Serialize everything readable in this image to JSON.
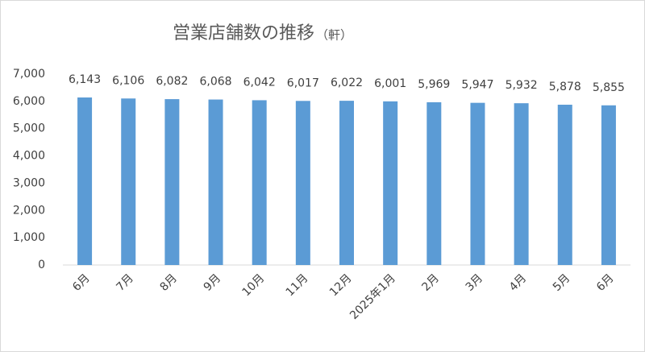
{
  "chart_data": {
    "type": "bar",
    "title": "営業店舗数の推移",
    "title_unit": "（軒）",
    "categories": [
      "6月",
      "7月",
      "8月",
      "9月",
      "10月",
      "11月",
      "12月",
      "2025年1月",
      "2月",
      "3月",
      "4月",
      "5月",
      "6月"
    ],
    "values": [
      6143,
      6106,
      6082,
      6068,
      6042,
      6017,
      6022,
      6001,
      5969,
      5947,
      5932,
      5878,
      5855
    ],
    "value_labels": [
      "6,143",
      "6,106",
      "6,082",
      "6,068",
      "6,042",
      "6,017",
      "6,022",
      "6,001",
      "5,969",
      "5,947",
      "5,932",
      "5,878",
      "5,855"
    ],
    "color": "#5b9bd5",
    "ylim": [
      0,
      7000
    ],
    "yticks": [
      0,
      {
        "value": 1000,
        "label": "1,000"
      },
      {
        "value": 2000,
        "label": "2,000"
      },
      {
        "value": 3000,
        "label": "3,000"
      },
      {
        "value": 4000,
        "label": "4,000"
      },
      {
        "value": 5000,
        "label": "5,000"
      },
      {
        "value": 6000,
        "label": "6,000"
      },
      {
        "value": 7000,
        "label": "7,000"
      }
    ],
    "grid": false
  }
}
